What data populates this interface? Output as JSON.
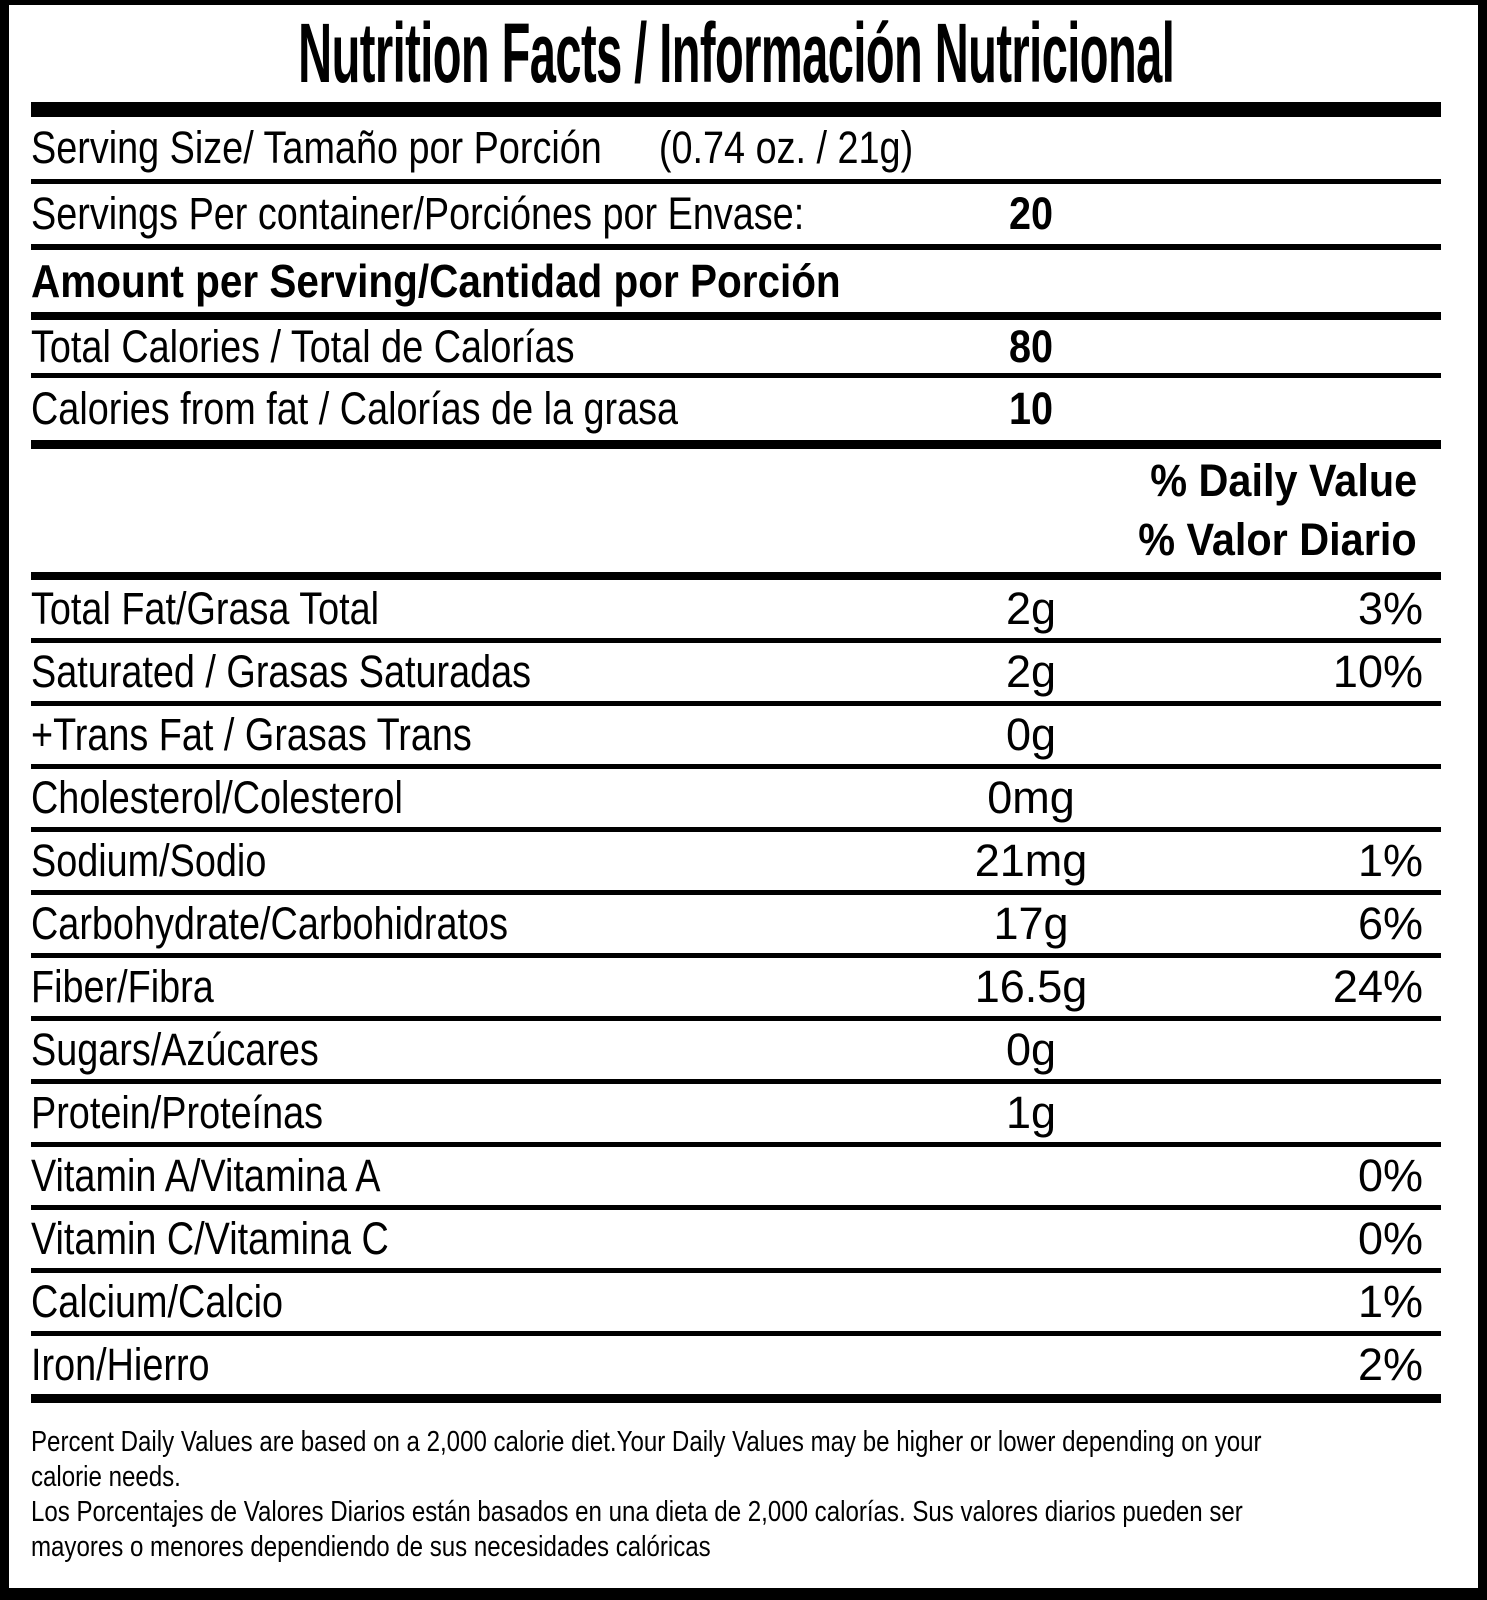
{
  "title": "Nutrition Facts / Información Nutricional",
  "serving": {
    "size_label": "Serving Size/ Tamaño por Porción",
    "size_value": "(0.74 oz. / 21g)",
    "per_container_label": "Servings Per container/Porciónes por Envase:",
    "per_container_value": "20"
  },
  "amount_per_serving_heading": "Amount per Serving/Cantidad por Porción",
  "calories": [
    {
      "label": "Total Calories / Total de Calorías",
      "value": "80"
    },
    {
      "label": "Calories from fat / Calorías de la grasa",
      "value": "10"
    }
  ],
  "daily_value_header": {
    "line1": "% Daily Value",
    "line2": "% Valor Diario"
  },
  "nutrients": [
    {
      "label": "Total Fat/Grasa Total",
      "amount": "2g",
      "dv": "3%"
    },
    {
      "label": "Saturated / Grasas Saturadas",
      "amount": "2g",
      "dv": "10%"
    },
    {
      "label": "+Trans Fat / Grasas Trans",
      "amount": "0g",
      "dv": ""
    },
    {
      "label": "Cholesterol/Colesterol",
      "amount": "0mg",
      "dv": ""
    },
    {
      "label": "Sodium/Sodio",
      "amount": "21mg",
      "dv": "1%"
    },
    {
      "label": "Carbohydrate/Carbohidratos",
      "amount": "17g",
      "dv": "6%"
    },
    {
      "label": "Fiber/Fibra",
      "amount": "16.5g",
      "dv": "24%"
    },
    {
      "label": "Sugars/Azúcares",
      "amount": "0g",
      "dv": ""
    },
    {
      "label": "Protein/Proteínas",
      "amount": "1g",
      "dv": ""
    },
    {
      "label": "Vitamin A/Vitamina A",
      "amount": "",
      "dv": "0%"
    },
    {
      "label": "Vitamin C/Vitamina C",
      "amount": "",
      "dv": "0%"
    },
    {
      "label": "Calcium/Calcio",
      "amount": "",
      "dv": "1%"
    },
    {
      "label": "Iron/Hierro",
      "amount": "",
      "dv": "2%"
    }
  ],
  "footnotes": {
    "en1": "Percent Daily Values are based on a 2,000 calorie diet.Your Daily Values may be higher or lower depending on your",
    "en2": "calorie needs.",
    "es1": "Los Porcentajes de Valores Diarios están basados en una dieta de 2,000 calorías. Sus valores diarios pueden ser",
    "es2": "mayores o menores dependiendo de sus necesidades calóricas"
  },
  "colors": {
    "text": "#000000",
    "background": "#ffffff"
  }
}
